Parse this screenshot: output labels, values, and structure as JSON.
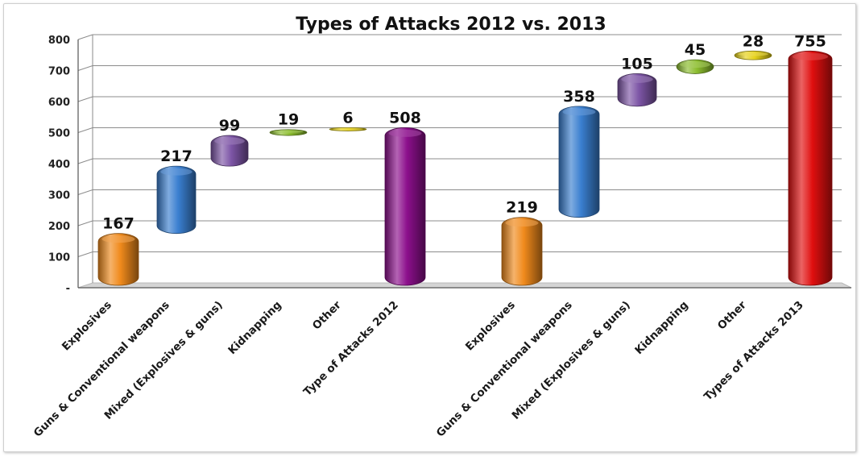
{
  "chart_data": {
    "type": "bar",
    "subtype": "waterfall",
    "title": "Types of Attacks 2012 vs. 2013",
    "xlabel": "",
    "ylabel": "",
    "ylim": [
      0,
      800
    ],
    "yticks": [
      "-",
      "100",
      "200",
      "300",
      "400",
      "500",
      "600",
      "700",
      "800"
    ],
    "grid": true,
    "legend": "none",
    "bars": [
      {
        "category": "Explosives",
        "label": "167",
        "base": 0,
        "value": 167,
        "color": "#f08a1c"
      },
      {
        "category": "Guns & Conventional weapons",
        "label": "217",
        "base": 167,
        "value": 217,
        "color": "#3a7fd0"
      },
      {
        "category": "Mixed (Explosives & guns)",
        "label": "99",
        "base": 384,
        "value": 99,
        "color": "#7d55a6"
      },
      {
        "category": "Kidnapping",
        "label": "19",
        "base": 483,
        "value": 19,
        "color": "#8cbd2f"
      },
      {
        "category": "Other",
        "label": "6",
        "base": 502,
        "value": 6,
        "color": "#e6d21a"
      },
      {
        "category": "Type of Attacks 2012",
        "label": "508",
        "base": 0,
        "value": 508,
        "color": "#8c0f8c"
      },
      {
        "category": "Explosives",
        "label": "219",
        "base": 0,
        "value": 219,
        "color": "#f08a1c"
      },
      {
        "category": "Guns & Conventional weapons",
        "label": "358",
        "base": 219,
        "value": 358,
        "color": "#3a7fd0"
      },
      {
        "category": "Mixed (Explosives & guns)",
        "label": "105",
        "base": 577,
        "value": 105,
        "color": "#7d55a6"
      },
      {
        "category": "Kidnapping",
        "label": "45",
        "base": 682,
        "value": 45,
        "color": "#8cbd2f"
      },
      {
        "category": "Other",
        "label": "28",
        "base": 727,
        "value": 28,
        "color": "#e6d21a"
      },
      {
        "category": "Types of Attacks 2013",
        "label": "755",
        "base": 0,
        "value": 755,
        "color": "#e00f0f"
      }
    ]
  }
}
